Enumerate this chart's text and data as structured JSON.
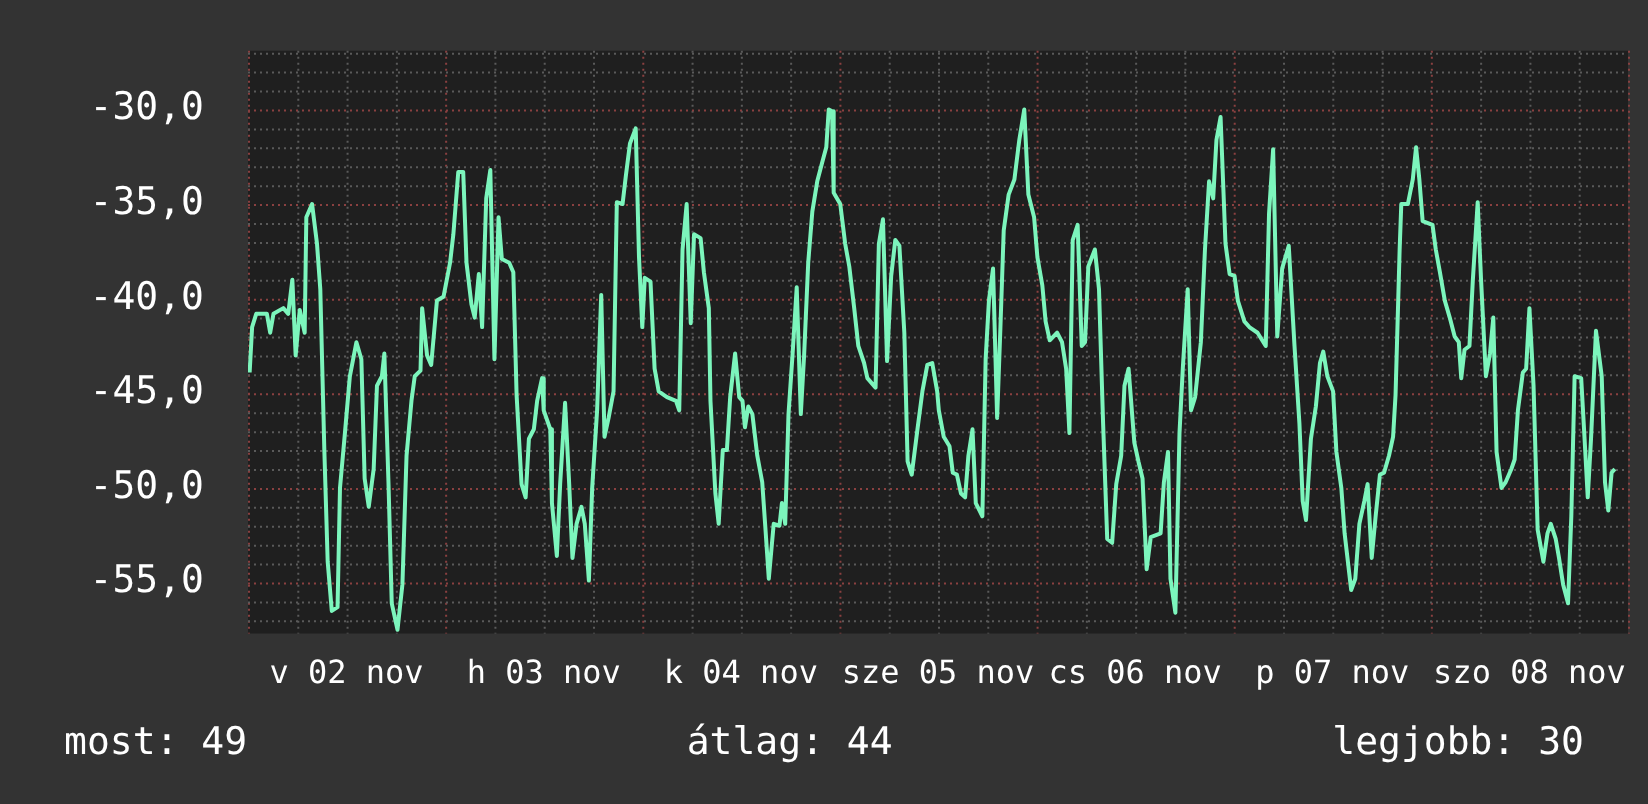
{
  "chart_data": {
    "type": "line",
    "x": [
      "--11-02T00:12",
      "--11-02T00:30",
      "--11-02T01:00",
      "--11-02T02:18",
      "--11-02T02:42",
      "--11-02T03:06",
      "--11-02T04:18",
      "--11-02T04:54",
      "--11-02T05:24",
      "--11-02T05:48",
      "--11-02T06:18",
      "--11-02T06:54",
      "--11-02T07:06",
      "--11-02T07:48",
      "--11-02T08:24",
      "--11-02T08:48",
      "--11-02T09:18",
      "--11-02T09:42",
      "--11-02T10:12",
      "--11-02T10:54",
      "--11-02T11:12",
      "--11-02T11:48",
      "--11-02T12:24",
      "--11-02T13:12",
      "--11-02T13:48",
      "--11-02T14:12",
      "--11-02T14:42",
      "--11-02T15:18",
      "--11-02T15:42",
      "--11-02T16:18",
      "--11-02T16:36",
      "--11-02T17:06",
      "--11-02T17:30",
      "--11-02T18:12",
      "--11-02T18:48",
      "--11-02T19:18",
      "--11-02T19:54",
      "--11-02T20:18",
      "--11-02T21:00",
      "--11-02T21:12",
      "--11-02T21:48",
      "--11-02T22:18",
      "--11-02T23:00",
      "--11-02T23:48",
      "--11-03T00:36",
      "--11-03T01:00",
      "--11-03T01:36",
      "--11-03T02:12",
      "--11-03T02:36",
      "--11-03T03:12",
      "--11-03T03:36",
      "--11-03T04:06",
      "--11-03T04:30",
      "--11-03T05:00",
      "--11-03T05:30",
      "--11-03T06:00",
      "--11-03T06:30",
      "--11-03T06:54",
      "--11-03T07:48",
      "--11-03T08:18",
      "--11-03T08:42",
      "--11-03T09:18",
      "--11-03T09:48",
      "--11-03T10:12",
      "--11-03T10:48",
      "--11-03T11:12",
      "--11-03T11:48",
      "--11-03T12:00",
      "--11-03T12:48",
      "--11-03T13:00",
      "--11-03T13:36",
      "--11-03T14:00",
      "--11-03T14:36",
      "--11-03T15:06",
      "--11-03T15:30",
      "--11-03T16:00",
      "--11-03T16:36",
      "--11-03T17:00",
      "--11-03T17:30",
      "--11-03T17:54",
      "--11-03T18:30",
      "--11-03T19:00",
      "--11-03T19:24",
      "--11-03T19:54",
      "--11-03T20:30",
      "--11-03T20:54",
      "--11-03T21:36",
      "--11-03T22:00",
      "--11-03T22:30",
      "--11-03T23:12",
      "--11-03T23:36",
      "--11-04T00:00",
      "--11-04T00:18",
      "--11-04T01:00",
      "--11-04T01:30",
      "--11-04T02:00",
      "--11-04T03:00",
      "--11-04T04:06",
      "--11-04T04:30",
      "--11-04T04:54",
      "--11-04T05:24",
      "--11-04T05:54",
      "--11-04T06:18",
      "--11-04T07:06",
      "--11-04T07:30",
      "--11-04T08:06",
      "--11-04T08:18",
      "--11-04T08:54",
      "--11-04T09:18",
      "--11-04T09:48",
      "--11-04T10:18",
      "--11-04T10:42",
      "--11-04T11:18",
      "--11-04T11:48",
      "--11-04T12:12",
      "--11-04T12:30",
      "--11-04T12:54",
      "--11-04T13:24",
      "--11-04T14:00",
      "--11-04T14:36",
      "--11-04T15:00",
      "--11-04T15:24",
      "--11-04T16:00",
      "--11-04T16:42",
      "--11-04T17:00",
      "--11-04T17:24",
      "--11-04T17:48",
      "--11-04T18:18",
      "--11-04T18:48",
      "--11-04T19:18",
      "--11-04T19:42",
      "--11-04T20:12",
      "--11-04T20:42",
      "--11-04T21:18",
      "--11-04T21:54",
      "--11-04T22:24",
      "--11-04T22:42",
      "--11-04T23:06",
      "--11-04T23:18",
      "--11-05T00:06",
      "--11-05T00:42",
      "--11-05T01:12",
      "--11-05T01:48",
      "--11-05T02:18",
      "--11-05T03:00",
      "--11-05T03:24",
      "--11-05T04:24",
      "--11-05T04:48",
      "--11-05T05:18",
      "--11-05T05:48",
      "--11-05T06:18",
      "--11-05T06:48",
      "--11-05T07:18",
      "--11-05T07:54",
      "--11-05T08:18",
      "--11-05T08:48",
      "--11-05T09:30",
      "--11-05T10:06",
      "--11-05T10:42",
      "--11-05T11:18",
      "--11-05T11:54",
      "--11-05T12:06",
      "--11-05T12:42",
      "--11-05T13:24",
      "--11-05T13:48",
      "--11-05T14:18",
      "--11-05T14:48",
      "--11-05T15:18",
      "--11-05T15:42",
      "--11-05T16:12",
      "--11-05T16:36",
      "--11-05T17:24",
      "--11-05T17:48",
      "--11-05T18:12",
      "--11-05T18:42",
      "--11-05T19:12",
      "--11-05T19:36",
      "--11-05T20:00",
      "--11-05T20:36",
      "--11-05T21:18",
      "--11-05T21:54",
      "--11-05T22:30",
      "--11-05T23:00",
      "--11-05T23:42",
      "--11-06T00:06",
      "--11-06T00:42",
      "--11-06T01:06",
      "--11-06T01:36",
      "--11-06T02:30",
      "--11-06T03:06",
      "--11-06T03:36",
      "--11-06T04:00",
      "--11-06T04:24",
      "--11-06T05:00",
      "--11-06T05:30",
      "--11-06T05:54",
      "--11-06T06:18",
      "--11-06T07:06",
      "--11-06T07:36",
      "--11-06T08:06",
      "--11-06T08:36",
      "--11-06T09:12",
      "--11-06T09:42",
      "--11-06T10:18",
      "--11-06T10:42",
      "--11-06T11:12",
      "--11-06T11:54",
      "--11-06T12:24",
      "--11-06T12:54",
      "--11-06T13:24",
      "--11-06T13:54",
      "--11-06T15:06",
      "--11-06T15:30",
      "--11-06T16:00",
      "--11-06T16:18",
      "--11-06T16:54",
      "--11-06T17:24",
      "--11-06T17:48",
      "--11-06T18:24",
      "--11-06T18:48",
      "--11-06T19:18",
      "--11-06T20:00",
      "--11-06T20:30",
      "--11-06T21:00",
      "--11-06T21:30",
      "--11-06T21:54",
      "--11-06T22:24",
      "--11-06T23:00",
      "--11-06T23:30",
      "--11-07T00:06",
      "--11-07T00:30",
      "--11-07T01:18",
      "--11-07T01:54",
      "--11-07T02:54",
      "--11-07T03:54",
      "--11-07T04:18",
      "--11-07T04:48",
      "--11-07T05:18",
      "--11-07T05:54",
      "--11-07T06:42",
      "--11-07T07:24",
      "--11-07T08:00",
      "--11-07T08:24",
      "--11-07T08:48",
      "--11-07T09:24",
      "--11-07T10:00",
      "--11-07T10:30",
      "--11-07T10:54",
      "--11-07T11:24",
      "--11-07T12:06",
      "--11-07T12:30",
      "--11-07T13:06",
      "--11-07T13:30",
      "--11-07T14:18",
      "--11-07T14:48",
      "--11-07T15:18",
      "--11-07T15:54",
      "--11-07T16:18",
      "--11-07T16:48",
      "--11-07T17:18",
      "--11-07T17:48",
      "--11-07T18:18",
      "--11-07T18:54",
      "--11-07T19:24",
      "--11-07T19:42",
      "--11-07T20:12",
      "--11-07T20:24",
      "--11-07T21:12",
      "--11-07T21:48",
      "--11-07T22:12",
      "--11-07T22:36",
      "--11-07T23:00",
      "--11-08T00:12",
      "--11-08T00:36",
      "--11-08T01:06",
      "--11-08T01:42",
      "--11-08T02:18",
      "--11-08T02:54",
      "--11-08T03:24",
      "--11-08T03:42",
      "--11-08T04:06",
      "--11-08T04:42",
      "--11-08T05:06",
      "--11-08T05:42",
      "--11-08T06:06",
      "--11-08T06:42",
      "--11-08T07:12",
      "--11-08T07:36",
      "--11-08T08:00",
      "--11-08T08:36",
      "--11-08T09:06",
      "--11-08T09:48",
      "--11-08T10:12",
      "--11-08T10:36",
      "--11-08T11:12",
      "--11-08T11:36",
      "--11-08T12:00",
      "--11-08T12:30",
      "--11-08T13:00",
      "--11-08T13:42",
      "--11-08T14:12",
      "--11-08T14:36",
      "--11-08T15:12",
      "--11-08T15:36",
      "--11-08T16:06",
      "--11-08T16:42",
      "--11-08T17:06",
      "--11-08T17:30",
      "--11-08T18:18",
      "--11-08T18:42",
      "--11-08T19:06",
      "--11-08T19:30",
      "--11-08T20:06",
      "--11-08T20:48",
      "--11-08T21:12",
      "--11-08T21:36",
      "--11-08T22:00",
      "--11-08T22:24"
    ],
    "series": [
      {
        "color": "#7cf5bc",
        "values": [
          -43.9,
          -41.5,
          -40.8,
          -40.8,
          -41.8,
          -40.8,
          -40.5,
          -40.8,
          -39.0,
          -43.0,
          -40.6,
          -41.8,
          -35.7,
          -35.0,
          -37.1,
          -39.5,
          -48.1,
          -53.9,
          -56.5,
          -56.3,
          -50.0,
          -47.1,
          -44.1,
          -42.3,
          -43.2,
          -49.5,
          -51.0,
          -49.0,
          -44.6,
          -44.1,
          -42.9,
          -49.7,
          -56.1,
          -57.5,
          -55.1,
          -48.3,
          -45.4,
          -44.1,
          -43.8,
          -40.5,
          -43.0,
          -43.5,
          -40.1,
          -39.9,
          -38.1,
          -36.6,
          -33.3,
          -33.3,
          -38.1,
          -40.3,
          -41.0,
          -38.7,
          -41.5,
          -34.7,
          -33.2,
          -43.2,
          -35.7,
          -37.9,
          -38.1,
          -38.6,
          -45.1,
          -49.8,
          -50.5,
          -47.4,
          -46.9,
          -45.4,
          -44.2,
          -45.9,
          -46.9,
          -50.8,
          -53.6,
          -49.8,
          -45.5,
          -49.8,
          -53.7,
          -51.9,
          -51.0,
          -51.9,
          -54.9,
          -50.0,
          -45.9,
          -39.8,
          -47.3,
          -46.3,
          -44.9,
          -34.9,
          -35.0,
          -33.5,
          -31.8,
          -31.0,
          -37.8,
          -41.5,
          -38.9,
          -39.1,
          -43.7,
          -44.9,
          -45.2,
          -45.4,
          -45.9,
          -37.4,
          -35.0,
          -41.3,
          -36.6,
          -36.8,
          -38.6,
          -40.5,
          -45.4,
          -50.3,
          -51.9,
          -48.0,
          -48.0,
          -45.2,
          -42.9,
          -45.2,
          -45.4,
          -46.8,
          -45.7,
          -46.1,
          -48.3,
          -49.7,
          -52.2,
          -54.8,
          -51.9,
          -52.0,
          -50.8,
          -51.9,
          -46.1,
          -42.9,
          -39.4,
          -46.1,
          -43.0,
          -38.1,
          -35.4,
          -33.8,
          -32.8,
          -32.0,
          -30.0,
          -30.1,
          -34.4,
          -35.0,
          -37.1,
          -38.3,
          -40.5,
          -42.5,
          -43.4,
          -44.2,
          -44.7,
          -37.1,
          -35.8,
          -43.3,
          -38.8,
          -36.9,
          -37.2,
          -41.8,
          -48.6,
          -49.3,
          -46.9,
          -44.9,
          -43.5,
          -43.4,
          -44.9,
          -45.9,
          -47.3,
          -47.8,
          -49.2,
          -49.3,
          -50.3,
          -50.5,
          -48.3,
          -46.9,
          -50.8,
          -51.5,
          -43.2,
          -40.1,
          -38.4,
          -46.3,
          -41.5,
          -36.4,
          -34.5,
          -33.7,
          -31.6,
          -30.0,
          -34.5,
          -35.7,
          -37.8,
          -39.3,
          -41.2,
          -42.2,
          -41.8,
          -42.3,
          -43.7,
          -47.1,
          -36.9,
          -36.1,
          -42.5,
          -42.3,
          -38.3,
          -37.4,
          -39.5,
          -46.6,
          -52.7,
          -52.9,
          -49.8,
          -48.3,
          -44.6,
          -43.7,
          -47.6,
          -48.6,
          -49.5,
          -54.3,
          -52.6,
          -52.4,
          -49.7,
          -48.1,
          -54.8,
          -56.6,
          -47.1,
          -43.7,
          -39.5,
          -45.9,
          -45.2,
          -42.3,
          -37.4,
          -33.8,
          -34.7,
          -31.6,
          -30.4,
          -37.1,
          -38.7,
          -38.8,
          -40.1,
          -41.2,
          -41.5,
          -41.8,
          -42.5,
          -35.5,
          -32.1,
          -42.0,
          -38.4,
          -37.2,
          -42.5,
          -46.6,
          -50.7,
          -51.7,
          -47.4,
          -45.7,
          -43.4,
          -42.8,
          -44.1,
          -44.9,
          -48.1,
          -50.0,
          -52.4,
          -55.4,
          -54.8,
          -51.9,
          -50.7,
          -49.8,
          -53.7,
          -51.4,
          -49.3,
          -49.2,
          -48.3,
          -47.3,
          -45.1,
          -37.4,
          -35.0,
          -35.0,
          -33.7,
          -32.0,
          -33.7,
          -35.9,
          -36.1,
          -37.4,
          -38.6,
          -40.1,
          -41.0,
          -42.0,
          -42.3,
          -44.2,
          -42.7,
          -42.5,
          -39.1,
          -34.9,
          -38.9,
          -44.1,
          -42.9,
          -41.0,
          -48.1,
          -50.0,
          -49.7,
          -49.0,
          -48.5,
          -45.9,
          -43.9,
          -43.7,
          -40.5,
          -44.6,
          -52.2,
          -53.9,
          -52.4,
          -51.9,
          -52.7,
          -53.7,
          -55.1,
          -56.1,
          -51.5,
          -44.1,
          -44.2,
          -47.3,
          -50.5,
          -47.4,
          -41.7,
          -44.1,
          -49.7,
          -51.2,
          -49.2,
          -49.0
        ]
      }
    ],
    "xlim": [
      "--11-02T00:00",
      "--11-09T00:00"
    ],
    "xticks": [
      {
        "value": "--11-02T00:00",
        "label": null
      },
      {
        "value": "--11-02T12:00",
        "label": "v 02 nov"
      },
      {
        "value": "--11-03T00:00",
        "label": null
      },
      {
        "value": "--11-03T12:00",
        "label": "h 03 nov"
      },
      {
        "value": "--11-04T00:00",
        "label": null
      },
      {
        "value": "--11-04T12:00",
        "label": "k 04 nov"
      },
      {
        "value": "--11-05T00:00",
        "label": null
      },
      {
        "value": "--11-05T12:00",
        "label": "sze 05 nov"
      },
      {
        "value": "--11-06T00:00",
        "label": null
      },
      {
        "value": "--11-06T12:00",
        "label": "cs 06 nov"
      },
      {
        "value": "--11-07T00:00",
        "label": null
      },
      {
        "value": "--11-07T12:00",
        "label": "p 07 nov"
      },
      {
        "value": "--11-08T00:00",
        "label": null
      },
      {
        "value": "--11-08T12:00",
        "label": "szo 08 nov"
      },
      {
        "value": "--11-09T00:00",
        "label": null
      }
    ],
    "ylim": [
      -57.7,
      -26.9
    ],
    "yticks": [
      {
        "value": -55,
        "label": "-55,0"
      },
      {
        "value": -50,
        "label": "-50,0"
      },
      {
        "value": -45,
        "label": "-45,0"
      },
      {
        "value": -40,
        "label": "-40,0"
      },
      {
        "value": -35,
        "label": "-35,0"
      },
      {
        "value": -30,
        "label": "-30,0"
      }
    ],
    "grid": true,
    "annotations": [
      "most: 49",
      "átlag: 44",
      "legjobb: 30"
    ]
  }
}
